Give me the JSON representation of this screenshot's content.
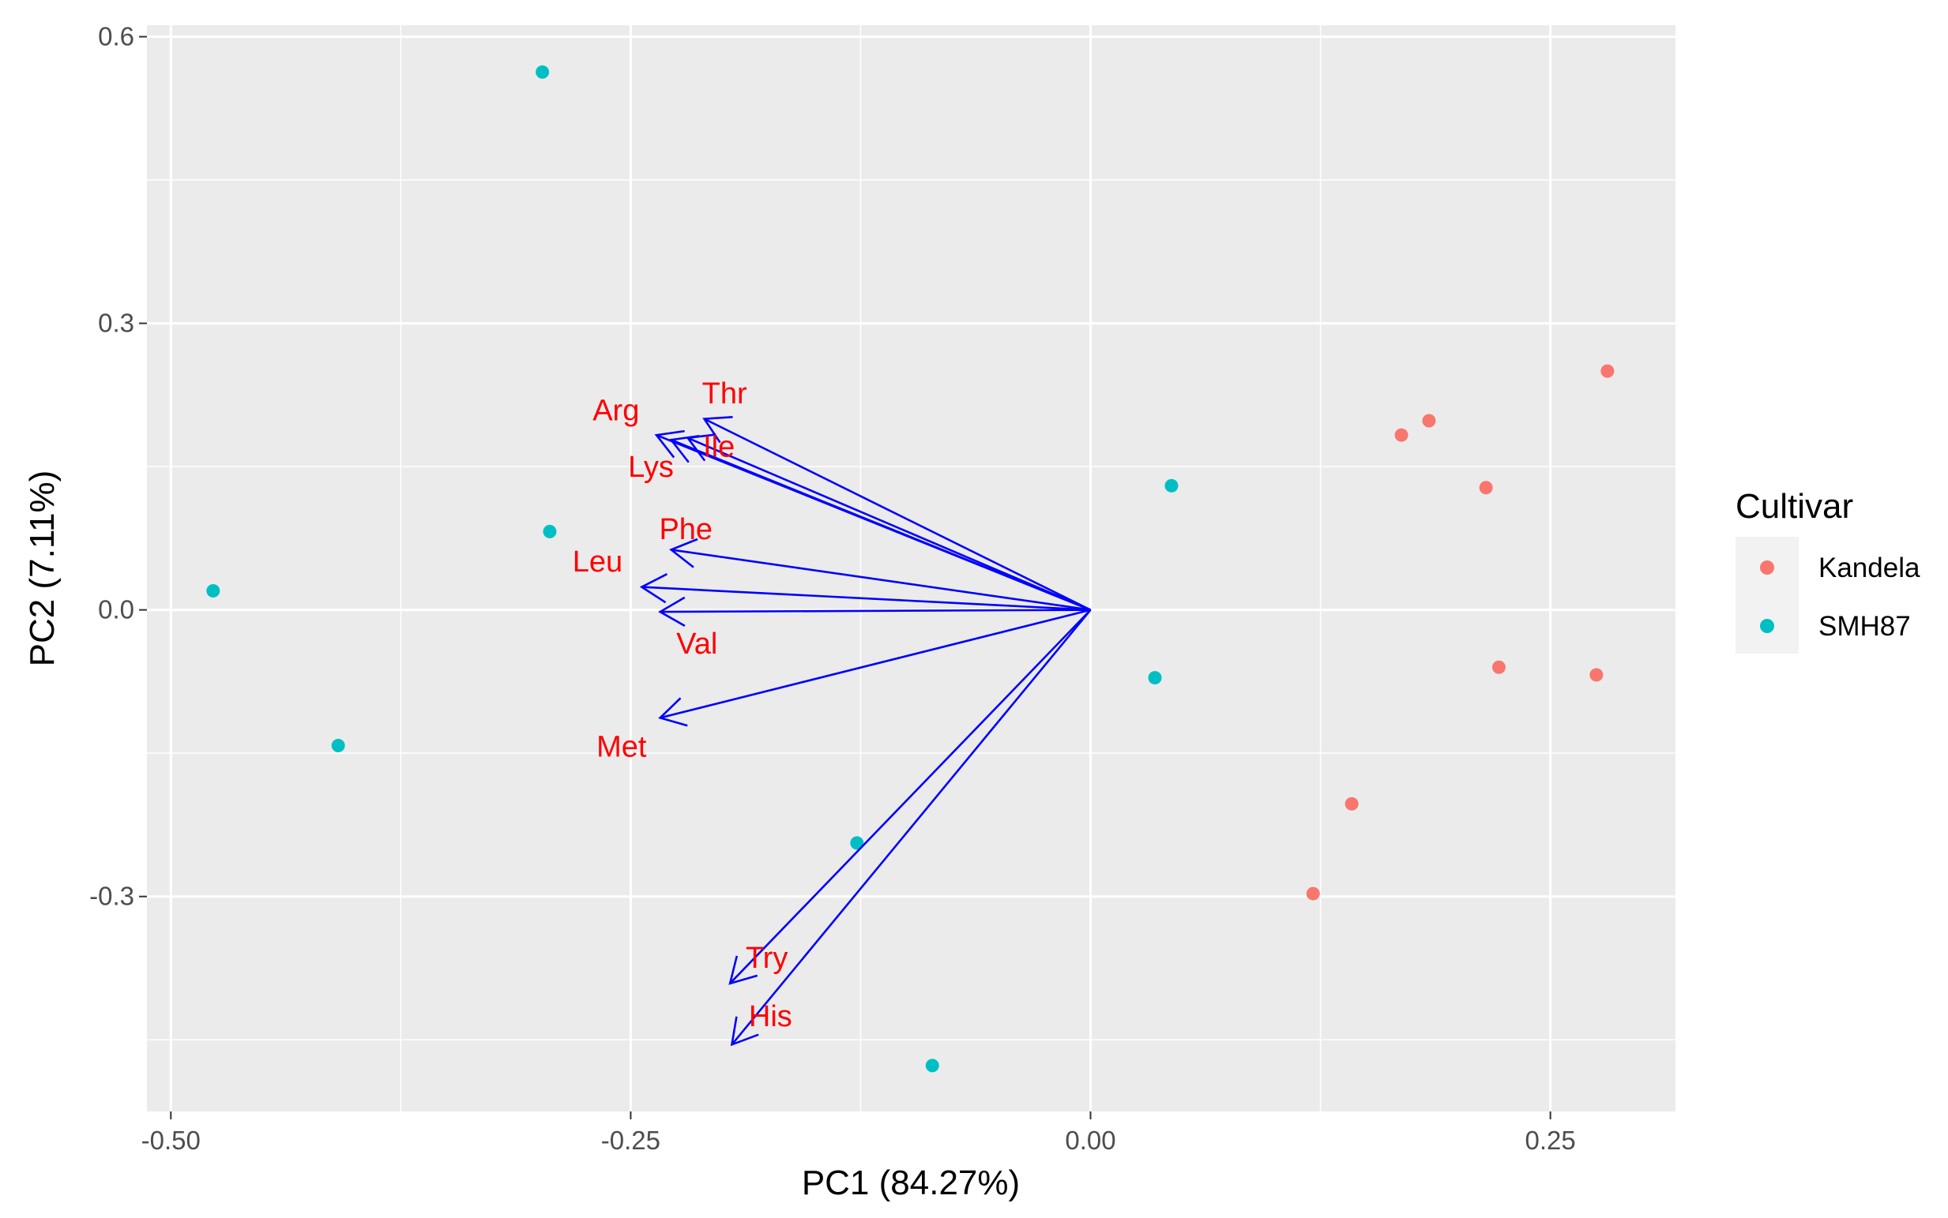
{
  "chart_data": {
    "type": "scatter",
    "subtype": "pca-biplot",
    "title": "",
    "xlabel": "PC1 (84.27%)",
    "ylabel": "PC2 (7.11%)",
    "xlim": [
      -0.513,
      0.318
    ],
    "ylim": [
      -0.525,
      0.612
    ],
    "x_ticks": [
      {
        "value": -0.5,
        "label": "-0.50"
      },
      {
        "value": -0.25,
        "label": "-0.25"
      },
      {
        "value": 0.0,
        "label": "0.00"
      },
      {
        "value": 0.25,
        "label": "0.25"
      }
    ],
    "y_ticks": [
      {
        "value": 0.6,
        "label": "0.6"
      },
      {
        "value": 0.3,
        "label": "0.3"
      },
      {
        "value": 0.0,
        "label": "0.0"
      },
      {
        "value": -0.3,
        "label": "-0.3"
      }
    ],
    "grid": true,
    "legend": {
      "title": "Cultivar",
      "position": "right",
      "entries": [
        {
          "name": "Kandela",
          "color": "#F8766D"
        },
        {
          "name": "SMH87",
          "color": "#00BFC4"
        }
      ]
    },
    "series": [
      {
        "name": "Kandela",
        "color": "#F8766D",
        "points": [
          {
            "x": 0.281,
            "y": 0.25
          },
          {
            "x": 0.184,
            "y": 0.198
          },
          {
            "x": 0.169,
            "y": 0.183
          },
          {
            "x": 0.215,
            "y": 0.128
          },
          {
            "x": 0.222,
            "y": -0.06
          },
          {
            "x": 0.275,
            "y": -0.068
          },
          {
            "x": 0.142,
            "y": -0.203
          },
          {
            "x": 0.121,
            "y": -0.297
          }
        ]
      },
      {
        "name": "SMH87",
        "color": "#00BFC4",
        "points": [
          {
            "x": -0.298,
            "y": 0.563
          },
          {
            "x": -0.294,
            "y": 0.082
          },
          {
            "x": -0.477,
            "y": 0.02
          },
          {
            "x": -0.409,
            "y": -0.142
          },
          {
            "x": 0.044,
            "y": 0.13
          },
          {
            "x": 0.035,
            "y": -0.071
          },
          {
            "x": -0.127,
            "y": -0.244
          },
          {
            "x": -0.086,
            "y": -0.477
          }
        ]
      }
    ],
    "vectors": {
      "color": "#0000FF",
      "label_color": "#FF0000",
      "loadings": [
        {
          "name": "Thr",
          "x": -0.21,
          "y": 0.2,
          "label_x": -0.199,
          "label_y": 0.227
        },
        {
          "name": "Arg",
          "x": -0.236,
          "y": 0.183,
          "label_x": -0.258,
          "label_y": 0.209
        },
        {
          "name": "Ile",
          "x": -0.219,
          "y": 0.18,
          "label_x": -0.202,
          "label_y": 0.171
        },
        {
          "name": "Lys",
          "x": -0.228,
          "y": 0.178,
          "label_x": -0.239,
          "label_y": 0.15
        },
        {
          "name": "Phe",
          "x": -0.228,
          "y": 0.063,
          "label_x": -0.22,
          "label_y": 0.085
        },
        {
          "name": "Leu",
          "x": -0.244,
          "y": 0.024,
          "label_x": -0.268,
          "label_y": 0.051
        },
        {
          "name": "Val",
          "x": -0.234,
          "y": -0.002,
          "label_x": -0.214,
          "label_y": -0.035
        },
        {
          "name": "Met",
          "x": -0.234,
          "y": -0.113,
          "label_x": -0.255,
          "label_y": -0.143
        },
        {
          "name": "Try",
          "x": -0.196,
          "y": -0.391,
          "label_x": -0.176,
          "label_y": -0.364
        },
        {
          "name": "His",
          "x": -0.195,
          "y": -0.455,
          "label_x": -0.174,
          "label_y": -0.425
        }
      ]
    }
  }
}
